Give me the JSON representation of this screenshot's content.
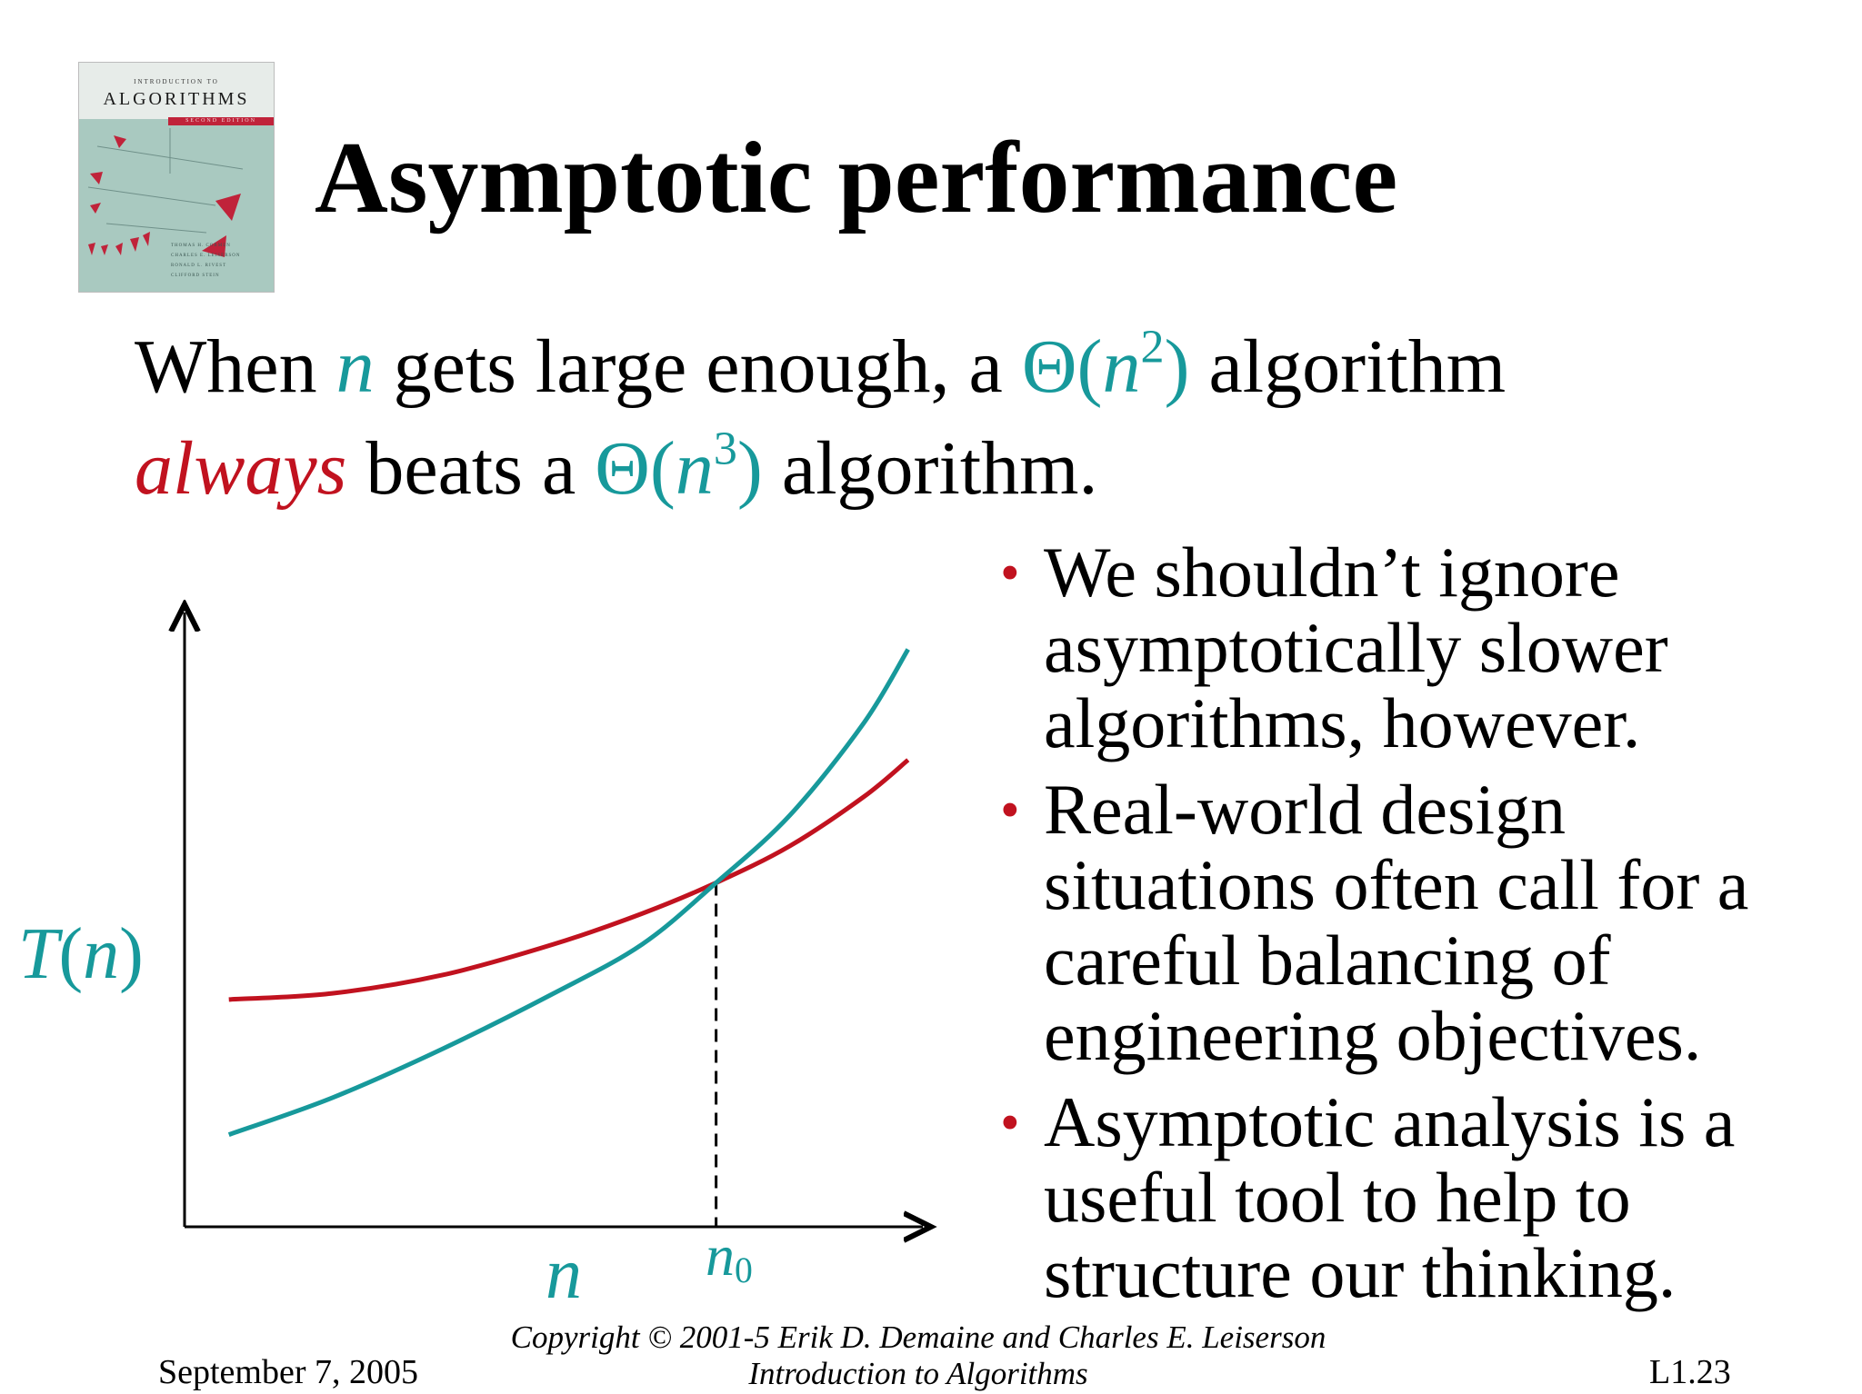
{
  "cover": {
    "intro": "INTRODUCTION TO",
    "title": "ALGORITHMS",
    "edition": "SECOND EDITION",
    "authors": [
      "THOMAS H. CORMEN",
      "CHARLES E. LEISERSON",
      "RONALD L. RIVEST",
      "CLIFFORD STEIN"
    ]
  },
  "slide": {
    "title": "Asymptotic performance",
    "statement": {
      "w1": "When ",
      "n": "n",
      "w2": " gets large enough, a ",
      "theta": "Θ(",
      "exp2": "2",
      "close": ")",
      "w3": " algorithm",
      "always": "always",
      "w4": " beats a ",
      "exp3": "3",
      "w5": " algorithm."
    },
    "bullets": [
      "We shouldn’t ignore asymptotically slower algorithms, however.",
      "Real-world design situations often call for a careful balancing of engineering objectives.",
      "Asymptotic analysis is a useful tool to help to structure our thinking."
    ],
    "bullet_symbol": "•"
  },
  "chart_data": {
    "type": "line",
    "ylabel": "T(n)",
    "xlabel": "n",
    "annotation": "n0",
    "xlim": [
      0,
      1
    ],
    "ylim": [
      0,
      1
    ],
    "crossover_x": 0.72,
    "series": [
      {
        "color": "#c1121f",
        "x": [
          0.06,
          0.2,
          0.35,
          0.5,
          0.62,
          0.72,
          0.82,
          0.92,
          0.98
        ],
        "y": [
          0.37,
          0.38,
          0.41,
          0.46,
          0.51,
          0.56,
          0.62,
          0.7,
          0.76
        ]
      },
      {
        "color": "#17999b",
        "x": [
          0.06,
          0.2,
          0.35,
          0.5,
          0.62,
          0.72,
          0.82,
          0.92,
          0.98
        ],
        "y": [
          0.15,
          0.21,
          0.29,
          0.38,
          0.46,
          0.56,
          0.67,
          0.82,
          0.94
        ]
      }
    ],
    "grid": false,
    "legend": "none"
  },
  "footer": {
    "date": "September 7, 2005",
    "copyright": "Copyright © 2001-5 Erik D. Demaine and Charles E. Leiserson",
    "book": "Introduction to Algorithms",
    "page": "L1.23"
  }
}
